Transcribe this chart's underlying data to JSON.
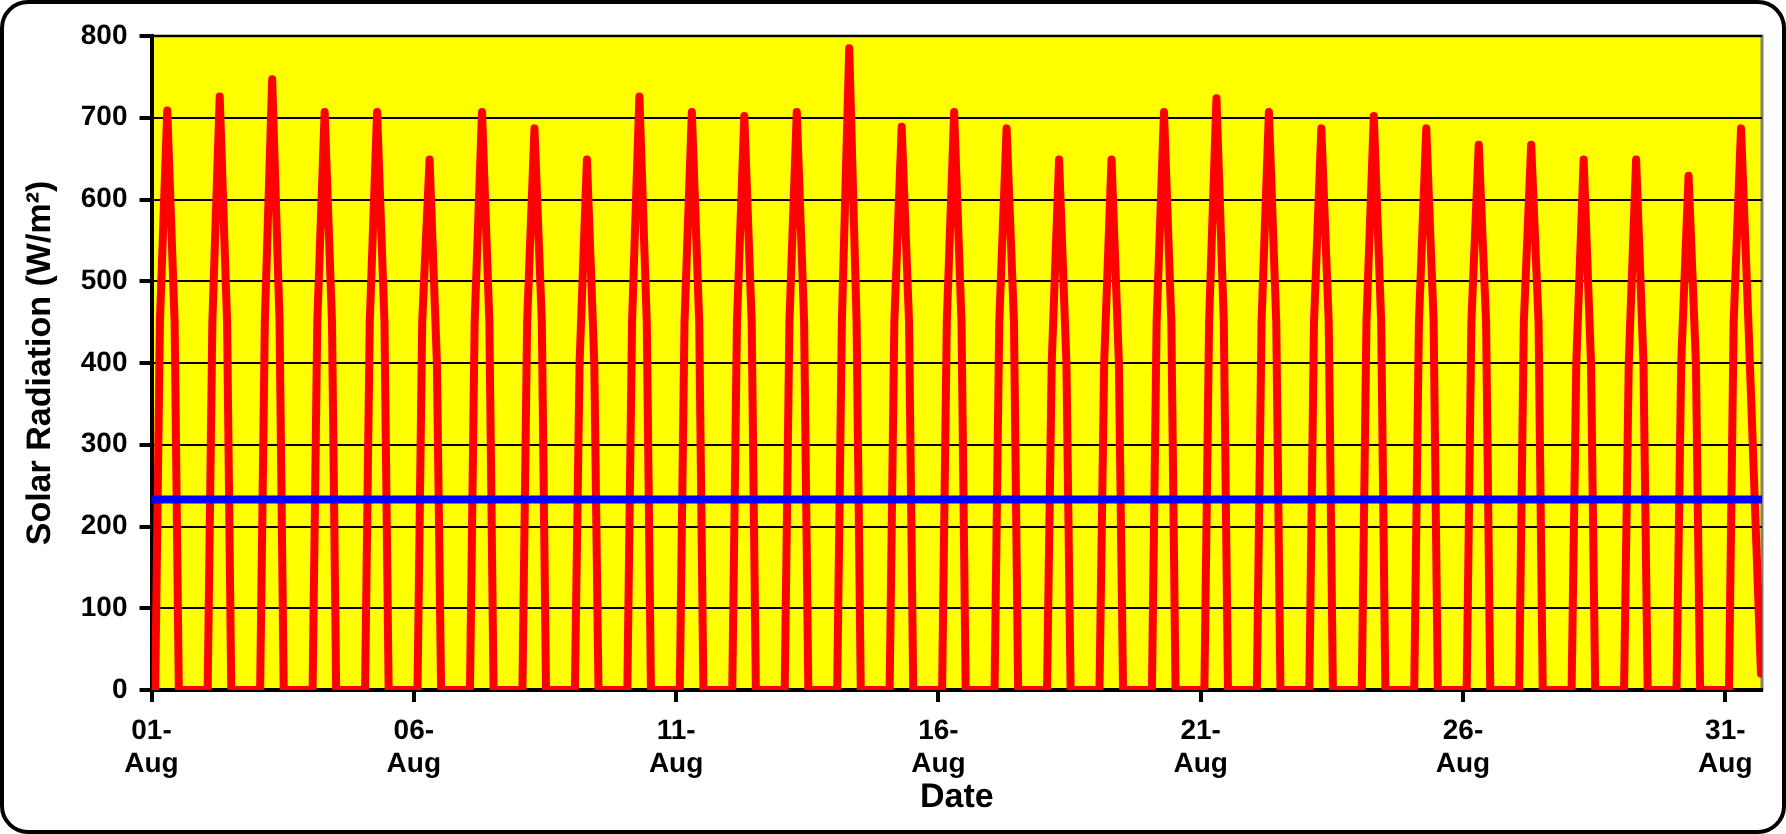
{
  "chart_data": {
    "type": "line",
    "xlabel": "Date",
    "ylabel": "Solar Radiation (W/m²)",
    "xlim": [
      "--08-01",
      "--08-31T16:48"
    ],
    "xticks": [
      {
        "value": "--08-01",
        "label": "01-Aug"
      },
      {
        "value": "--08-06",
        "label": "06-Aug"
      },
      {
        "value": "--08-11",
        "label": "11-Aug"
      },
      {
        "value": "--08-16",
        "label": "16-Aug"
      },
      {
        "value": "--08-21",
        "label": "21-Aug"
      },
      {
        "value": "--08-26",
        "label": "26-Aug"
      },
      {
        "value": "--08-31",
        "label": "31-Aug"
      }
    ],
    "ylim": [
      0,
      800
    ],
    "yticks": [
      0,
      100,
      200,
      300,
      400,
      500,
      600,
      700,
      800
    ],
    "grid": "y",
    "legend": false,
    "marker": "none",
    "line_style": "solid",
    "series": [
      {
        "color": "#ff0000",
        "x": [
          "--08-01T01:41",
          "--08-01T03:50",
          "--08-01T07:12",
          "--08-01T10:34",
          "--08-01T12:29",
          "--08-02T01:41",
          "--08-02T03:50",
          "--08-02T07:12",
          "--08-02T10:34",
          "--08-02T12:29",
          "--08-03T01:41",
          "--08-03T03:50",
          "--08-03T07:12",
          "--08-03T10:34",
          "--08-03T12:29",
          "--08-04T01:41",
          "--08-04T03:50",
          "--08-04T07:12",
          "--08-04T10:34",
          "--08-04T12:29",
          "--08-05T01:41",
          "--08-05T03:50",
          "--08-05T07:12",
          "--08-05T10:34",
          "--08-05T12:29",
          "--08-06T01:41",
          "--08-06T03:50",
          "--08-06T07:12",
          "--08-06T10:34",
          "--08-06T12:29",
          "--08-07T01:41",
          "--08-07T03:50",
          "--08-07T07:12",
          "--08-07T10:34",
          "--08-07T12:29",
          "--08-08T01:41",
          "--08-08T03:50",
          "--08-08T07:12",
          "--08-08T10:34",
          "--08-08T12:29",
          "--08-09T01:41",
          "--08-09T03:50",
          "--08-09T07:12",
          "--08-09T10:34",
          "--08-09T12:29",
          "--08-10T01:41",
          "--08-10T03:50",
          "--08-10T07:12",
          "--08-10T10:34",
          "--08-10T12:29",
          "--08-11T01:41",
          "--08-11T03:50",
          "--08-11T07:12",
          "--08-11T10:34",
          "--08-11T12:29",
          "--08-12T01:41",
          "--08-12T03:50",
          "--08-12T07:12",
          "--08-12T10:34",
          "--08-12T12:29",
          "--08-13T01:41",
          "--08-13T03:50",
          "--08-13T07:12",
          "--08-13T10:34",
          "--08-13T12:29",
          "--08-14T01:41",
          "--08-14T03:50",
          "--08-14T07:12",
          "--08-14T10:34",
          "--08-14T12:29",
          "--08-15T01:41",
          "--08-15T03:50",
          "--08-15T07:12",
          "--08-15T10:34",
          "--08-15T12:29",
          "--08-16T01:41",
          "--08-16T03:50",
          "--08-16T07:12",
          "--08-16T10:34",
          "--08-16T12:29",
          "--08-17T01:41",
          "--08-17T03:50",
          "--08-17T07:12",
          "--08-17T10:34",
          "--08-17T12:29",
          "--08-18T01:41",
          "--08-18T03:50",
          "--08-18T07:12",
          "--08-18T10:34",
          "--08-18T12:29",
          "--08-19T01:41",
          "--08-19T03:50",
          "--08-19T07:12",
          "--08-19T10:34",
          "--08-19T12:29",
          "--08-20T01:41",
          "--08-20T03:50",
          "--08-20T07:12",
          "--08-20T10:34",
          "--08-20T12:29",
          "--08-21T01:41",
          "--08-21T03:50",
          "--08-21T07:12",
          "--08-21T10:34",
          "--08-21T12:29",
          "--08-22T01:41",
          "--08-22T03:50",
          "--08-22T07:12",
          "--08-22T10:34",
          "--08-22T12:29",
          "--08-23T01:41",
          "--08-23T03:50",
          "--08-23T07:12",
          "--08-23T10:34",
          "--08-23T12:29",
          "--08-24T01:41",
          "--08-24T03:50",
          "--08-24T07:12",
          "--08-24T10:34",
          "--08-24T12:29",
          "--08-25T01:41",
          "--08-25T03:50",
          "--08-25T07:12",
          "--08-25T10:34",
          "--08-25T12:29",
          "--08-26T01:41",
          "--08-26T03:50",
          "--08-26T07:12",
          "--08-26T10:34",
          "--08-26T12:29",
          "--08-27T01:41",
          "--08-27T03:50",
          "--08-27T07:12",
          "--08-27T10:34",
          "--08-27T12:29",
          "--08-28T01:41",
          "--08-28T03:50",
          "--08-28T07:12",
          "--08-28T10:34",
          "--08-28T12:29",
          "--08-29T01:41",
          "--08-29T03:50",
          "--08-29T07:12",
          "--08-29T10:34",
          "--08-29T12:29",
          "--08-30T01:41",
          "--08-30T03:50",
          "--08-30T07:12",
          "--08-30T10:34",
          "--08-30T12:29",
          "--08-31T01:41",
          "--08-31T03:50",
          "--08-31T07:12",
          "--08-31T10:34",
          "--08-31T16:19"
        ],
        "values": [
          0,
          450,
          709,
          450,
          0,
          0,
          450,
          726,
          450,
          0,
          0,
          450,
          747,
          450,
          0,
          0,
          450,
          707,
          450,
          0,
          0,
          450,
          707,
          450,
          0,
          0,
          450,
          649,
          400,
          0,
          0,
          450,
          707,
          450,
          0,
          0,
          450,
          687,
          450,
          0,
          0,
          400,
          649,
          400,
          0,
          0,
          450,
          726,
          450,
          0,
          0,
          450,
          707,
          450,
          0,
          0,
          450,
          702,
          450,
          0,
          0,
          450,
          707,
          450,
          0,
          0,
          450,
          785,
          450,
          0,
          0,
          450,
          689,
          450,
          0,
          0,
          450,
          707,
          450,
          0,
          0,
          450,
          687,
          450,
          0,
          0,
          400,
          649,
          400,
          0,
          0,
          400,
          649,
          400,
          0,
          0,
          450,
          707,
          450,
          0,
          0,
          450,
          724,
          450,
          0,
          0,
          450,
          707,
          450,
          0,
          0,
          450,
          687,
          450,
          0,
          0,
          450,
          702,
          450,
          0,
          0,
          450,
          687,
          450,
          0,
          0,
          450,
          667,
          450,
          0,
          0,
          450,
          667,
          450,
          0,
          0,
          400,
          649,
          400,
          0,
          0,
          400,
          649,
          400,
          0,
          0,
          400,
          629,
          400,
          0,
          0,
          450,
          687,
          450,
          20
        ]
      }
    ],
    "ref_lines": [
      {
        "axis": "y",
        "value": 233,
        "color": "#0000ff"
      }
    ]
  }
}
